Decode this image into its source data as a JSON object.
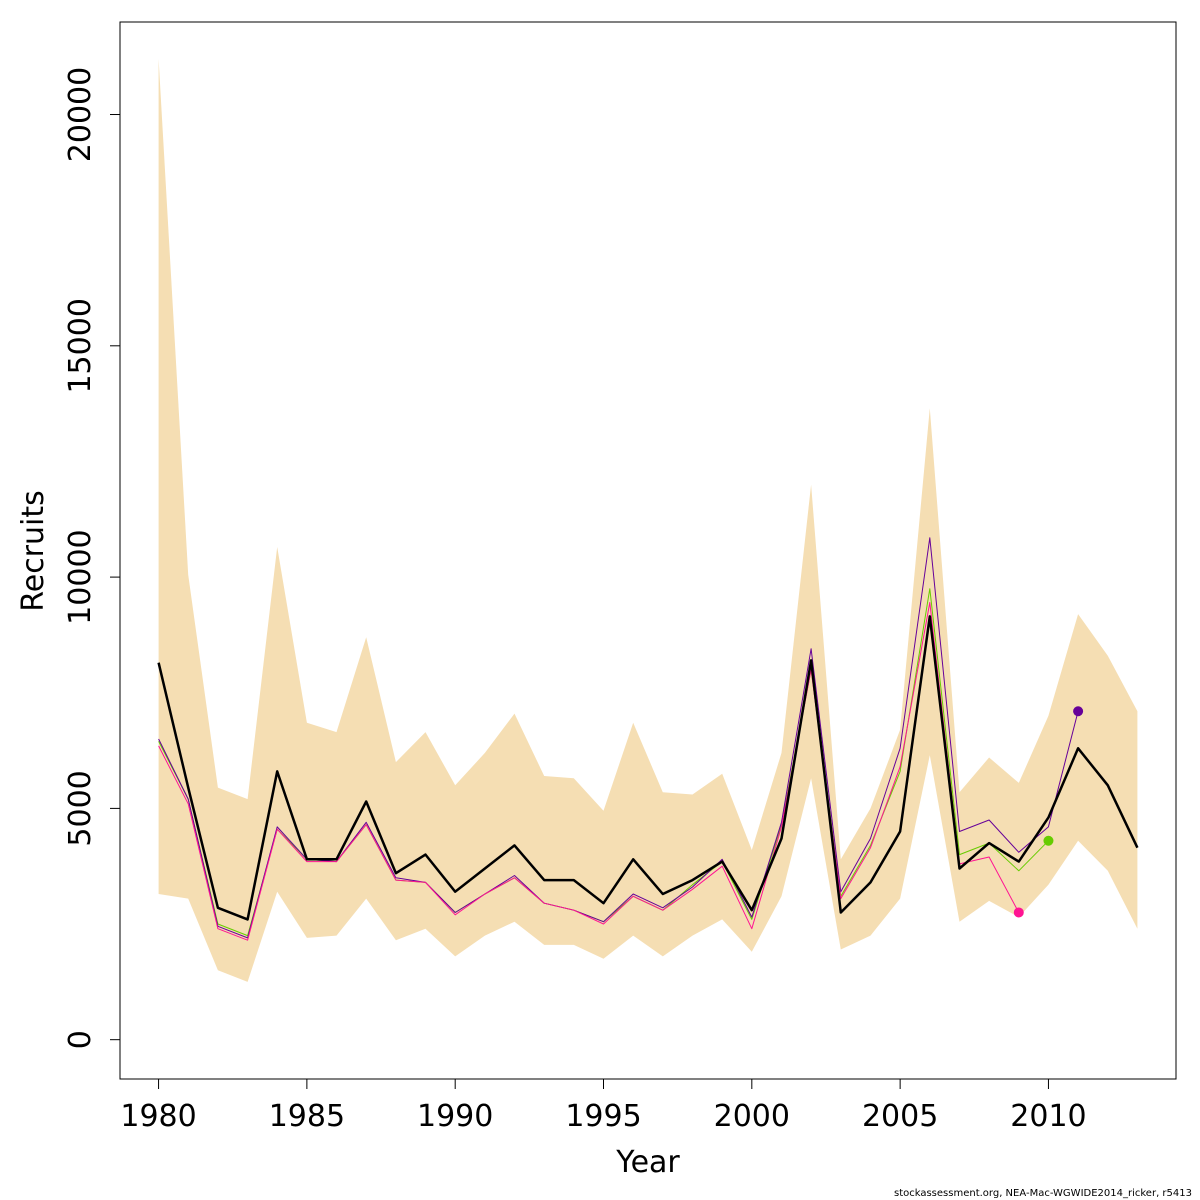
{
  "chart_data": {
    "type": "line",
    "title": "",
    "xlabel": "Year",
    "ylabel": "Recruits",
    "xlim": [
      1978.7,
      2014.3
    ],
    "ylim": [
      -850,
      22000
    ],
    "x_ticks": [
      1980,
      1985,
      1990,
      1995,
      2000,
      2005,
      2010
    ],
    "y_ticks": [
      0,
      5000,
      10000,
      15000,
      20000
    ],
    "grid": false,
    "legend": "none",
    "footnote": "stockassessment.org, NEA-Mac-WGWIDE2014_ricker, r5413",
    "band": {
      "color": "#f5deb3",
      "x": [
        1980,
        1981,
        1982,
        1983,
        1984,
        1985,
        1986,
        1987,
        1988,
        1989,
        1990,
        1991,
        1992,
        1993,
        1994,
        1995,
        1996,
        1997,
        1998,
        1999,
        2000,
        2001,
        2002,
        2003,
        2004,
        2005,
        2006,
        2007,
        2008,
        2009,
        2010,
        2011,
        2012,
        2013
      ],
      "upper": [
        21200,
        10050,
        5450,
        5200,
        10650,
        6850,
        6650,
        8700,
        6000,
        6650,
        5500,
        6200,
        7050,
        5700,
        5650,
        4950,
        6850,
        5350,
        5300,
        5750,
        4100,
        6200,
        12000,
        3900,
        5000,
        6700,
        13650,
        5350,
        6100,
        5550,
        7000,
        9200,
        8300,
        7100
      ],
      "lower": [
        3150,
        3050,
        1500,
        1250,
        3200,
        2200,
        2250,
        3050,
        2150,
        2400,
        1800,
        2250,
        2550,
        2050,
        2050,
        1750,
        2250,
        1800,
        2250,
        2600,
        1900,
        3100,
        5650,
        1950,
        2250,
        3050,
        6150,
        2550,
        3000,
        2650,
        3350,
        4300,
        3650,
        2400
      ]
    },
    "series": [
      {
        "color": "#000000",
        "x": [
          1980,
          1981,
          1982,
          1983,
          1984,
          1985,
          1986,
          1987,
          1988,
          1989,
          1990,
          1991,
          1992,
          1993,
          1994,
          1995,
          1996,
          1997,
          1998,
          1999,
          2000,
          2001,
          2002,
          2003,
          2004,
          2005,
          2006,
          2007,
          2008,
          2009,
          2010,
          2011,
          2012,
          2013
        ],
        "y": [
          8150,
          5450,
          2850,
          2600,
          5800,
          3900,
          3900,
          5150,
          3600,
          4000,
          3200,
          3700,
          4200,
          3450,
          3450,
          2950,
          3900,
          3150,
          3450,
          3850,
          2800,
          4350,
          8200,
          2750,
          3400,
          4500,
          9150,
          3700,
          4250,
          3850,
          4800,
          6300,
          5500,
          4150
        ]
      },
      {
        "color": "#66cc00",
        "x": [
          1980,
          1981,
          1982,
          1983,
          1984,
          1985,
          1986,
          1987,
          1988,
          1989,
          1990,
          1991,
          1992,
          1993,
          1994,
          1995,
          1996,
          1997,
          1998,
          1999,
          2000,
          2001,
          2002,
          2003,
          2004,
          2005,
          2006,
          2007,
          2008,
          2009,
          2010
        ],
        "y": [
          6450,
          5200,
          2500,
          2250,
          4550,
          3900,
          3850,
          4650,
          3450,
          3400,
          2750,
          3150,
          3500,
          2950,
          2800,
          2550,
          3100,
          2800,
          3350,
          3850,
          2600,
          4650,
          8000,
          3100,
          4200,
          5800,
          9750,
          4000,
          4250,
          3650,
          4300
        ],
        "marker": {
          "x": 2010,
          "y": 4300
        }
      },
      {
        "color": "#660099",
        "x": [
          1980,
          1981,
          1982,
          1983,
          1984,
          1985,
          1986,
          1987,
          1988,
          1989,
          1990,
          1991,
          1992,
          1993,
          1994,
          1995,
          1996,
          1997,
          1998,
          1999,
          2000,
          2001,
          2002,
          2003,
          2004,
          2005,
          2006,
          2007,
          2008,
          2009,
          2010,
          2011
        ],
        "y": [
          6500,
          5200,
          2450,
          2200,
          4600,
          3900,
          3850,
          4700,
          3500,
          3400,
          2750,
          3150,
          3550,
          2950,
          2800,
          2550,
          3150,
          2850,
          3300,
          3900,
          2650,
          4700,
          8450,
          3200,
          4350,
          6300,
          10850,
          4500,
          4750,
          4050,
          4600,
          7100
        ],
        "marker": {
          "x": 2011,
          "y": 7100
        }
      },
      {
        "color": "#ff1493",
        "x": [
          1980,
          1981,
          1982,
          1983,
          1984,
          1985,
          1986,
          1987,
          1988,
          1989,
          1990,
          1991,
          1992,
          1993,
          1994,
          1995,
          1996,
          1997,
          1998,
          1999,
          2000,
          2001,
          2002,
          2003,
          2004,
          2005,
          2006,
          2007,
          2008,
          2009
        ],
        "y": [
          6350,
          5100,
          2400,
          2150,
          4550,
          3850,
          3850,
          4650,
          3450,
          3400,
          2700,
          3150,
          3500,
          2950,
          2800,
          2500,
          3100,
          2800,
          3250,
          3750,
          2400,
          4600,
          8000,
          3050,
          4150,
          5900,
          9450,
          3800,
          3950,
          2750
        ],
        "marker": {
          "x": 2009,
          "y": 2750
        }
      }
    ]
  }
}
